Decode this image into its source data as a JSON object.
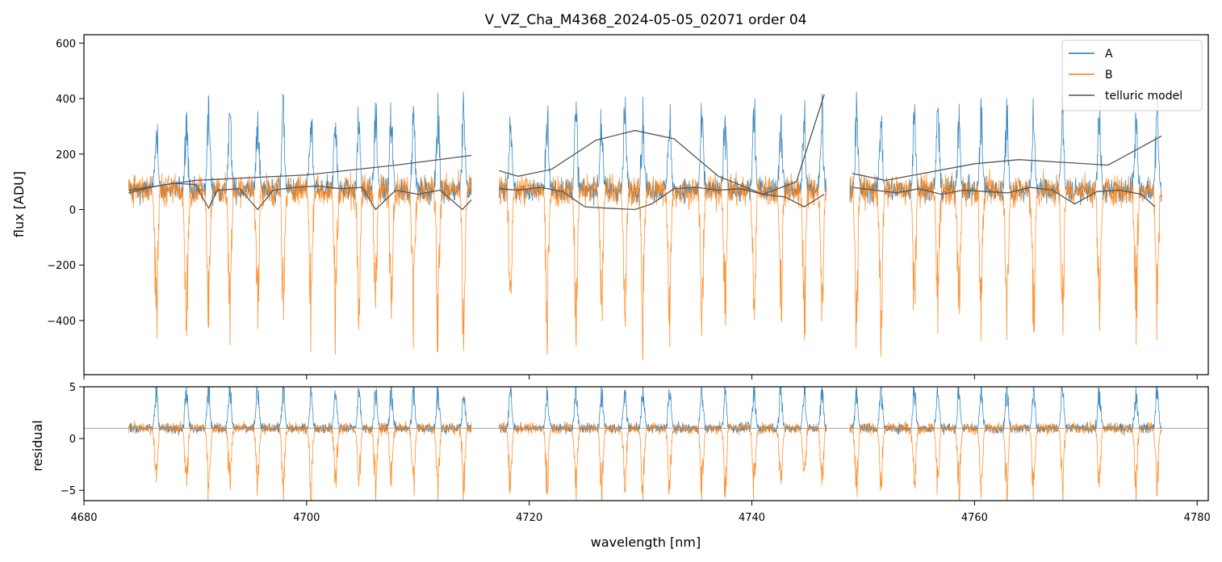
{
  "chart_data": {
    "type": "line",
    "title": "V_VZ_Cha_M4368_2024-05-05_02071  order 04",
    "xlabel": "wavelength [nm]",
    "colors": {
      "A": "#1f77b4",
      "B": "#ff7f0e",
      "model": "#555555",
      "zero_line": "#888888"
    },
    "legend": {
      "location": "top-right",
      "entries": [
        {
          "label": "A",
          "color": "#1f77b4"
        },
        {
          "label": "B",
          "color": "#ff7f0e"
        },
        {
          "label": "telluric model",
          "color": "#555555"
        }
      ]
    },
    "xlim": [
      4680,
      4781
    ],
    "xticks": [
      4680,
      4700,
      4720,
      4740,
      4760,
      4780
    ],
    "xtick_labels": [
      "4680",
      "4700",
      "4720",
      "4740",
      "4760",
      "4780"
    ],
    "segments": [
      [
        4684,
        4714.8
      ],
      [
        4717.3,
        4746.7
      ],
      [
        4748.8,
        4776.8
      ]
    ],
    "absorption_lines": [
      4686.5,
      4689.2,
      4691.2,
      4693.1,
      4695.6,
      4697.9,
      4700.4,
      4702.6,
      4704.7,
      4706.2,
      4707.6,
      4709.6,
      4711.8,
      4714.1,
      4718.3,
      4721.6,
      4724.2,
      4726.5,
      4728.6,
      4730.2,
      4732.6,
      4735.5,
      4737.6,
      4740.2,
      4742.6,
      4744.7,
      4746.3,
      4749.4,
      4751.6,
      4754.6,
      4756.7,
      4758.6,
      4760.6,
      4762.9,
      4765.3,
      4767.9,
      4771.2,
      4774.5,
      4776.4
    ],
    "panels": [
      {
        "name": "flux",
        "ylabel": "flux [ADU]",
        "ylim": [
          -595,
          630
        ],
        "yticks": [
          -400,
          -200,
          0,
          200,
          400,
          600
        ],
        "ytick_labels": [
          "−400",
          "−200",
          "0",
          "200",
          "400",
          "600"
        ],
        "series": [
          {
            "name": "A",
            "baseline": 70,
            "noise": 40,
            "line_depth": 260
          },
          {
            "name": "B",
            "baseline": 70,
            "noise": 55,
            "line_depth": -420
          },
          {
            "name": "telluric model smooth",
            "x": [
              4684,
              4690,
              4700,
              4708,
              4714.8,
              null,
              4717.3,
              4719,
              4722,
              4726,
              4729.5,
              4733,
              4737,
              4741,
              4744,
              4746.5,
              null,
              4749,
              4752,
              4756,
              4760,
              4764,
              4768,
              4772,
              4776.8
            ],
            "y": [
              70,
              105,
              125,
              160,
              195,
              null,
              140,
              120,
              145,
              250,
              285,
              255,
              120,
              55,
              100,
              415,
              null,
              130,
              105,
              135,
              165,
              180,
              170,
              160,
              265
            ]
          },
          {
            "name": "telluric model scaled",
            "x": [
              4684,
              4686,
              4688,
              4690,
              4691.2,
              4692,
              4694,
              4695.6,
              4697,
              4699,
              4701,
              4703,
              4705,
              4706.2,
              4708,
              4710,
              4712,
              4714,
              4714.8,
              null,
              4717.3,
              4719,
              4721,
              4723,
              4725,
              4727,
              4729.5,
              4731,
              4733,
              4735,
              4737,
              4739,
              4741,
              4743,
              4744.7,
              4746.5,
              null,
              4749,
              4751,
              4753,
              4755,
              4757,
              4759,
              4761,
              4763,
              4765,
              4767,
              4769,
              4771,
              4773,
              4775,
              4776.2
            ],
            "y": [
              60,
              80,
              95,
              90,
              5,
              70,
              75,
              0,
              70,
              80,
              85,
              75,
              80,
              0,
              70,
              55,
              70,
              0,
              35,
              null,
              75,
              70,
              80,
              65,
              10,
              5,
              0,
              20,
              75,
              80,
              70,
              75,
              55,
              45,
              10,
              55,
              null,
              80,
              70,
              60,
              75,
              55,
              70,
              65,
              60,
              80,
              70,
              20,
              65,
              70,
              55,
              10
            ]
          }
        ]
      },
      {
        "name": "residual",
        "ylabel": "residual",
        "ylim": [
          -6,
          5
        ],
        "yticks": [
          -5,
          0,
          5
        ],
        "ytick_labels": [
          "−5",
          "0",
          "5"
        ],
        "reference_line": 1,
        "series": [
          {
            "name": "A",
            "baseline": 1,
            "noise": 0.45,
            "line_depth": 3.5
          },
          {
            "name": "B",
            "baseline": 1,
            "noise": 0.5,
            "line_depth": -5.5
          }
        ]
      }
    ]
  }
}
